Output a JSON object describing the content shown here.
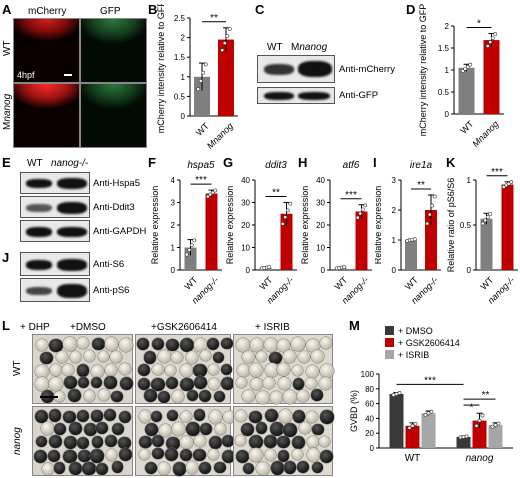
{
  "panels": {
    "A": {
      "letter": "A",
      "channels": [
        "mCherry",
        "GFP"
      ],
      "rows": [
        "WT",
        "Mnanog"
      ],
      "stage": "4hpf"
    },
    "B": {
      "letter": "B"
    },
    "C": {
      "letter": "C",
      "lanes": [
        "WT",
        "Mnanog"
      ],
      "antibodies": [
        "Anti-mCherry",
        "Anti-GFP"
      ]
    },
    "D": {
      "letter": "D"
    },
    "E": {
      "letter": "E",
      "lanes": [
        "WT",
        "nanog-/-"
      ],
      "antibodies": [
        "Anti-Hspa5",
        "Anti-Ddit3",
        "Anti-GAPDH"
      ]
    },
    "F": {
      "letter": "F"
    },
    "G": {
      "letter": "G"
    },
    "H": {
      "letter": "H"
    },
    "I": {
      "letter": "I"
    },
    "J": {
      "letter": "J",
      "antibodies": [
        "Anti-S6",
        "Anti-pS6"
      ]
    },
    "K": {
      "letter": "K"
    },
    "L": {
      "letter": "L",
      "conditions": [
        "+ DHP",
        "+DMSO",
        "+GSK2606414",
        "+ ISRIB"
      ],
      "rows": [
        "WT",
        "nanog"
      ]
    },
    "M": {
      "letter": "M"
    }
  },
  "chart_data": [
    {
      "id": "B",
      "type": "bar",
      "categories": [
        "WT",
        "Mnanog"
      ],
      "values": [
        1.0,
        1.95
      ],
      "errors": [
        0.35,
        0.3
      ],
      "ylabel": "mCherry intensity relative to GFP",
      "ylim": [
        0,
        2.5
      ],
      "yticks": [
        0,
        0.5,
        1.0,
        1.5,
        2.0,
        2.5
      ],
      "significance": "**",
      "colors": [
        "#7f7f7f",
        "#c00000"
      ]
    },
    {
      "id": "D",
      "type": "bar",
      "categories": [
        "WT",
        "Mnanog"
      ],
      "values": [
        1.05,
        1.68
      ],
      "errors": [
        0.08,
        0.15
      ],
      "ylabel": "mCherry intensity relative to GFP",
      "ylim": [
        0,
        2.0
      ],
      "yticks": [
        0,
        0.5,
        1.0,
        1.5,
        2.0
      ],
      "significance": "*",
      "colors": [
        "#7f7f7f",
        "#c00000"
      ]
    },
    {
      "id": "F",
      "type": "bar",
      "title": "hspa5",
      "categories": [
        "WT",
        "nanog-/-"
      ],
      "values": [
        1.0,
        3.4
      ],
      "errors": [
        0.35,
        0.15
      ],
      "ylabel": "Relative expression",
      "ylim": [
        0,
        4
      ],
      "yticks": [
        0,
        1,
        2,
        3,
        4
      ],
      "significance": "***",
      "colors": [
        "#7f7f7f",
        "#c00000"
      ]
    },
    {
      "id": "G",
      "type": "bar",
      "title": "ddit3",
      "categories": [
        "WT",
        "nanog-/-"
      ],
      "values": [
        1.0,
        25
      ],
      "errors": [
        0.3,
        5
      ],
      "ylabel": "Relative expression",
      "ylim": [
        0,
        40
      ],
      "yticks": [
        0,
        10,
        20,
        30,
        40
      ],
      "significance": "**",
      "colors": [
        "#7f7f7f",
        "#c00000"
      ]
    },
    {
      "id": "H",
      "type": "bar",
      "title": "atf6",
      "categories": [
        "WT",
        "nanog-/-"
      ],
      "values": [
        1.0,
        26
      ],
      "errors": [
        0.3,
        3
      ],
      "ylabel": "Relative expression",
      "ylim": [
        0,
        40
      ],
      "yticks": [
        0,
        10,
        20,
        30,
        40
      ],
      "significance": "***",
      "colors": [
        "#7f7f7f",
        "#c00000"
      ]
    },
    {
      "id": "I",
      "type": "bar",
      "title": "ire1a",
      "categories": [
        "WT",
        "nanog-/-"
      ],
      "values": [
        1.0,
        2.0
      ],
      "errors": [
        0.03,
        0.5
      ],
      "ylabel": "Relative expression",
      "ylim": [
        0,
        3
      ],
      "yticks": [
        0,
        1,
        2,
        3
      ],
      "significance": "**",
      "colors": [
        "#7f7f7f",
        "#c00000"
      ]
    },
    {
      "id": "K",
      "type": "bar",
      "categories": [
        "WT",
        "nanog-/-"
      ],
      "values": [
        0.57,
        0.95
      ],
      "errors": [
        0.06,
        0.03
      ],
      "ylabel": "Relative ratio of pS6/S6",
      "ylim": [
        0,
        1.0
      ],
      "yticks": [
        0,
        0.5,
        1.0
      ],
      "significance": "***",
      "colors": [
        "#7f7f7f",
        "#c00000"
      ]
    },
    {
      "id": "M",
      "type": "bar",
      "groups": [
        "WT",
        "nanog"
      ],
      "series": [
        {
          "name": "+ DMSO",
          "values": [
            73,
            15
          ],
          "errors": [
            2,
            1
          ],
          "color": "#3a3a3a"
        },
        {
          "name": "+ GSK2606414",
          "values": [
            30,
            37
          ],
          "errors": [
            4,
            10
          ],
          "color": "#c00000"
        },
        {
          "name": "+ ISRIB",
          "values": [
            47,
            31
          ],
          "errors": [
            3,
            3
          ],
          "color": "#a6a6a6"
        }
      ],
      "ylabel": "GVBD (%)",
      "ylim": [
        0,
        100
      ],
      "yticks": [
        0,
        20,
        40,
        60,
        80,
        100
      ],
      "significance": [
        "***",
        "**",
        "*"
      ],
      "legend": "top-left"
    }
  ]
}
